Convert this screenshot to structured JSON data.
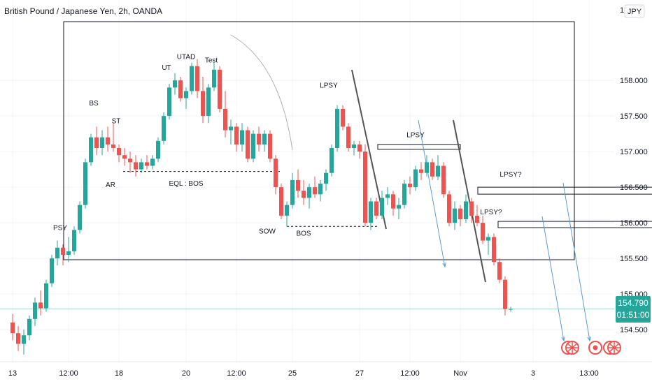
{
  "header": {
    "title": "British Pound / Japanese Yen, 2h, OANDA"
  },
  "currency": "JPY",
  "colors": {
    "up": "#26a69a",
    "down": "#ef5350",
    "grid": "#f0f3fa",
    "axis": "#131722",
    "box": "#131722",
    "arrow": "#5b9bd5",
    "trend": "#555555",
    "badge": "#26a69a"
  },
  "price_badge": {
    "price": "154.790",
    "countdown": "01:51:00"
  },
  "chart_data": {
    "type": "candlestick",
    "title": "British Pound / Japanese Yen, 2h, OANDA",
    "xlabel": "",
    "ylabel": "",
    "ylim": [
      154.05,
      159.05
    ],
    "y_ticks": [
      "158.000",
      "157.500",
      "157.000",
      "156.500",
      "156.000",
      "155.500",
      "155.000",
      "154.500"
    ],
    "y_ticks_values": [
      158.0,
      157.5,
      157.0,
      156.5,
      156.0,
      155.5,
      155.0,
      154.5
    ],
    "y_partial_top": "15",
    "x_ticks": [
      {
        "label": "13",
        "t": 0
      },
      {
        "label": "12:00",
        "t": 10
      },
      {
        "label": "18",
        "t": 19
      },
      {
        "label": "20",
        "t": 31
      },
      {
        "label": "12:00",
        "t": 40
      },
      {
        "label": "25",
        "t": 50
      },
      {
        "label": "27",
        "t": 62
      },
      {
        "label": "12:00",
        "t": 71
      },
      {
        "label": "Nov",
        "t": 80
      },
      {
        "label": "3",
        "t": 93
      },
      {
        "label": "13:00",
        "t": 103
      }
    ],
    "candles": [
      [
        154.6,
        154.72,
        154.35,
        154.45
      ],
      [
        154.45,
        154.55,
        154.2,
        154.3
      ],
      [
        154.3,
        154.5,
        154.15,
        154.42
      ],
      [
        154.42,
        154.7,
        154.35,
        154.65
      ],
      [
        154.65,
        154.95,
        154.55,
        154.88
      ],
      [
        154.88,
        155.05,
        154.7,
        154.8
      ],
      [
        154.8,
        155.2,
        154.75,
        155.15
      ],
      [
        155.15,
        155.55,
        155.1,
        155.5
      ],
      [
        155.5,
        155.75,
        155.4,
        155.65
      ],
      [
        155.65,
        155.7,
        155.4,
        155.55
      ],
      [
        155.55,
        155.8,
        155.45,
        155.6
      ],
      [
        155.6,
        155.95,
        155.55,
        155.9
      ],
      [
        155.9,
        156.3,
        155.85,
        156.25
      ],
      [
        156.25,
        156.9,
        156.2,
        156.85
      ],
      [
        156.85,
        157.25,
        156.8,
        157.2
      ],
      [
        157.2,
        157.35,
        156.95,
        157.05
      ],
      [
        157.05,
        157.3,
        156.95,
        157.2
      ],
      [
        157.2,
        157.35,
        157.0,
        157.1
      ],
      [
        157.1,
        157.4,
        157.0,
        157.05
      ],
      [
        157.05,
        157.1,
        156.85,
        156.95
      ],
      [
        156.95,
        157.05,
        156.8,
        156.9
      ],
      [
        156.9,
        157.0,
        156.7,
        156.85
      ],
      [
        156.85,
        156.95,
        156.65,
        156.75
      ],
      [
        156.75,
        156.9,
        156.7,
        156.85
      ],
      [
        156.85,
        156.95,
        156.75,
        156.8
      ],
      [
        156.8,
        156.95,
        156.75,
        156.9
      ],
      [
        156.9,
        157.2,
        156.85,
        157.15
      ],
      [
        157.15,
        157.55,
        157.1,
        157.5
      ],
      [
        157.5,
        157.95,
        157.45,
        157.9
      ],
      [
        157.9,
        158.1,
        157.8,
        158.0
      ],
      [
        158.0,
        158.05,
        157.7,
        157.75
      ],
      [
        157.75,
        157.9,
        157.6,
        157.85
      ],
      [
        157.85,
        158.25,
        157.8,
        158.2
      ],
      [
        158.2,
        158.3,
        157.75,
        157.85
      ],
      [
        157.85,
        158.05,
        157.4,
        157.5
      ],
      [
        157.5,
        157.95,
        157.4,
        157.9
      ],
      [
        157.9,
        158.25,
        157.85,
        158.15
      ],
      [
        158.15,
        158.2,
        157.55,
        157.6
      ],
      [
        157.6,
        157.85,
        157.2,
        157.3
      ],
      [
        157.3,
        157.45,
        157.1,
        157.35
      ],
      [
        157.35,
        157.4,
        157.0,
        157.1
      ],
      [
        157.1,
        157.4,
        157.0,
        157.3
      ],
      [
        157.3,
        157.35,
        156.85,
        156.9
      ],
      [
        156.9,
        157.3,
        156.85,
        157.25
      ],
      [
        157.25,
        157.35,
        157.0,
        157.1
      ],
      [
        157.1,
        157.3,
        157.0,
        157.25
      ],
      [
        157.25,
        157.3,
        156.85,
        156.9
      ],
      [
        156.9,
        156.95,
        156.4,
        156.5
      ],
      [
        156.5,
        156.55,
        156.05,
        156.1
      ],
      [
        156.1,
        156.3,
        155.95,
        156.25
      ],
      [
        156.25,
        156.7,
        156.2,
        156.6
      ],
      [
        156.6,
        156.75,
        156.35,
        156.45
      ],
      [
        156.45,
        156.6,
        156.25,
        156.35
      ],
      [
        156.35,
        156.55,
        156.2,
        156.5
      ],
      [
        156.5,
        156.65,
        156.35,
        156.4
      ],
      [
        156.4,
        156.6,
        156.3,
        156.55
      ],
      [
        156.55,
        156.75,
        156.45,
        156.7
      ],
      [
        156.7,
        157.1,
        156.65,
        157.05
      ],
      [
        157.05,
        157.65,
        157.0,
        157.6
      ],
      [
        157.6,
        157.65,
        157.3,
        157.35
      ],
      [
        157.35,
        157.4,
        157.0,
        157.05
      ],
      [
        157.05,
        157.15,
        156.95,
        157.1
      ],
      [
        157.1,
        157.15,
        156.9,
        157.0
      ],
      [
        157.0,
        157.1,
        155.95,
        156.0
      ],
      [
        156.0,
        156.35,
        155.9,
        156.3
      ],
      [
        156.3,
        156.35,
        156.05,
        156.1
      ],
      [
        156.1,
        156.45,
        156.05,
        156.35
      ],
      [
        156.35,
        156.5,
        156.25,
        156.4
      ],
      [
        156.4,
        156.45,
        156.1,
        156.2
      ],
      [
        156.2,
        156.35,
        156.05,
        156.25
      ],
      [
        156.25,
        156.6,
        156.2,
        156.55
      ],
      [
        156.55,
        156.65,
        156.4,
        156.5
      ],
      [
        156.5,
        156.8,
        156.45,
        156.75
      ],
      [
        156.75,
        156.85,
        156.6,
        156.7
      ],
      [
        156.7,
        156.95,
        156.65,
        156.85
      ],
      [
        156.85,
        156.9,
        156.6,
        156.65
      ],
      [
        156.65,
        156.95,
        156.6,
        156.8
      ],
      [
        156.8,
        156.85,
        156.35,
        156.4
      ],
      [
        156.4,
        156.45,
        155.95,
        156.0
      ],
      [
        156.0,
        156.3,
        155.9,
        156.2
      ],
      [
        156.2,
        156.25,
        155.95,
        156.05
      ],
      [
        156.05,
        156.4,
        156.0,
        156.3
      ],
      [
        156.3,
        156.35,
        156.0,
        156.1
      ],
      [
        156.1,
        156.25,
        155.95,
        156.0
      ],
      [
        156.0,
        156.1,
        155.7,
        155.75
      ],
      [
        155.75,
        155.85,
        155.55,
        155.8
      ],
      [
        155.8,
        155.85,
        155.4,
        155.45
      ],
      [
        155.45,
        155.5,
        155.15,
        155.2
      ],
      [
        155.2,
        155.25,
        154.7,
        154.79
      ],
      [
        154.79,
        154.82,
        154.75,
        154.79
      ]
    ],
    "current_price": 154.79,
    "annotations": [
      {
        "text": "PSY",
        "t": 8.5,
        "y": 155.9
      },
      {
        "text": "BS",
        "t": 14.5,
        "y": 157.65
      },
      {
        "text": "ST",
        "t": 18.5,
        "y": 157.4
      },
      {
        "text": "AR",
        "t": 17.5,
        "y": 156.5
      },
      {
        "text": "UT",
        "t": 27.5,
        "y": 158.15
      },
      {
        "text": "UTAD",
        "t": 31,
        "y": 158.3
      },
      {
        "text": "Test",
        "t": 35.5,
        "y": 158.25
      },
      {
        "text": "EQL : BOS",
        "t": 31,
        "y": 156.52
      },
      {
        "text": "SOW",
        "t": 45.5,
        "y": 155.85
      },
      {
        "text": "BOS",
        "t": 52,
        "y": 155.82
      },
      {
        "text": "LPSY",
        "t": 56.5,
        "y": 157.9
      },
      {
        "text": "LPSY",
        "t": 72,
        "y": 157.2
      },
      {
        "text": "LPSY?",
        "t": 89,
        "y": 156.65
      },
      {
        "text": "LPSY?",
        "t": 85.5,
        "y": 156.12
      }
    ]
  }
}
